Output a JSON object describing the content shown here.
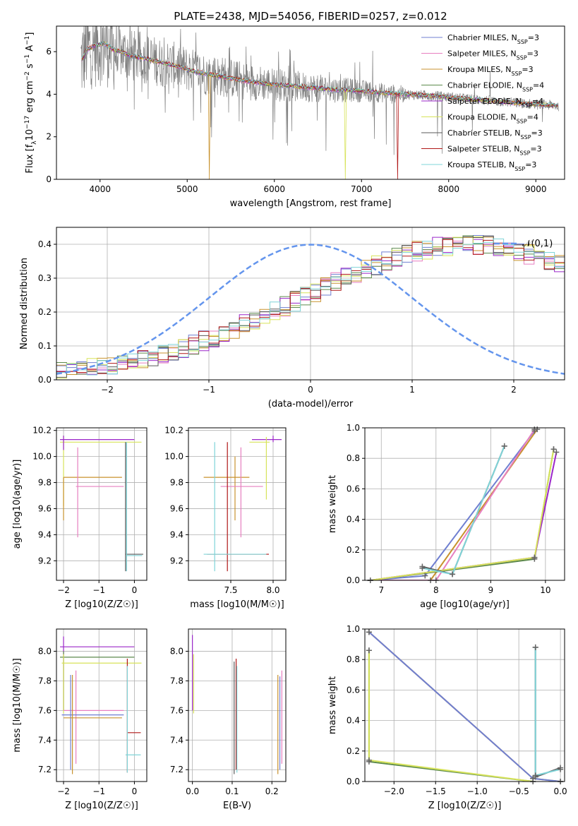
{
  "figure_title": "PLATE=2438, MJD=54056, FIBERID=0257, z=0.012",
  "series_legend": [
    {
      "name": "Chabrier MILES, N<sub>SSP</sub>=3",
      "label": "Chabrier MILES, N",
      "sub": "SSP",
      "tail": "=3",
      "color": "#6f7fd1"
    },
    {
      "name": "Salpeter MILES",
      "label": "Salpeter MILES, N",
      "sub": "SSP",
      "tail": "=3",
      "color": "#e77fc0"
    },
    {
      "name": "Kroupa MILES",
      "label": "Kroupa MILES, N",
      "sub": "SSP",
      "tail": "=3",
      "color": "#c8922e"
    },
    {
      "name": "Chabrier ELODIE",
      "label": "Chabrier ELODIE, N",
      "sub": "SSP",
      "tail": "=4",
      "color": "#5c8a4c"
    },
    {
      "name": "Salpeter ELODIE",
      "label": "Salpeter ELODIE, N",
      "sub": "SSP",
      "tail": "=4",
      "color": "#9b27c9"
    },
    {
      "name": "Kroupa ELODIE",
      "label": "Kroupa ELODIE, N",
      "sub": "SSP",
      "tail": "=4",
      "color": "#d7e35a"
    },
    {
      "name": "Chabrier STELIB",
      "label": "Chabrier STELIB, N",
      "sub": "SSP",
      "tail": "=3",
      "color": "#5a5a5a"
    },
    {
      "name": "Salpeter STELIB",
      "label": "Salpeter STELIB, N",
      "sub": "SSP",
      "tail": "=3",
      "color": "#b01818"
    },
    {
      "name": "Kroupa STELIB",
      "label": "Kroupa STELIB, N",
      "sub": "SSP",
      "tail": "=3",
      "color": "#7fd4d8"
    }
  ],
  "chart_data": [
    {
      "panel": "spectrum",
      "type": "line",
      "title": "PLATE=2438, MJD=54056, FIBERID=0257, z=0.012",
      "xlabel": "wavelength [Angstrom, rest frame]",
      "ylabel_main": "Flux [f",
      "ylabel_text": "Flux [fλ10⁻¹⁷ erg cm⁻² s⁻¹ A⁻¹]",
      "xlim": [
        3500,
        9330
      ],
      "ylim": [
        0,
        7.2
      ],
      "xticks": [
        4000,
        5000,
        6000,
        7000,
        8000,
        9000
      ],
      "yticks": [
        0,
        2,
        4,
        6
      ],
      "data_color": "#808080",
      "continuum": {
        "x": [
          3790,
          3850,
          3950,
          4050,
          4150,
          4250,
          4350,
          4500,
          4700,
          4900,
          5100,
          5300,
          5500,
          5700,
          5900,
          6100,
          6300,
          6500,
          6700,
          6900,
          7100,
          7300,
          7500,
          7700,
          7900,
          8100,
          8300,
          8500,
          8700,
          8900,
          9100,
          9260
        ],
        "y": [
          5.6,
          6.1,
          6.3,
          6.4,
          6.1,
          6.0,
          5.8,
          5.7,
          5.5,
          5.3,
          5.05,
          4.9,
          4.75,
          4.6,
          4.5,
          4.42,
          4.35,
          4.28,
          4.22,
          4.18,
          4.12,
          4.05,
          4.0,
          3.95,
          3.9,
          3.82,
          3.75,
          3.68,
          3.62,
          3.55,
          3.5,
          3.45
        ]
      }
    },
    {
      "panel": "residual_histogram",
      "type": "line",
      "xlabel": "(data-model)/error",
      "ylabel": "Normed distribution",
      "xlim": [
        -2.5,
        2.5
      ],
      "ylim": [
        0,
        0.45
      ],
      "xticks": [
        -2,
        -1,
        0,
        1,
        2
      ],
      "yticks": [
        0.0,
        0.1,
        0.2,
        0.3,
        0.4
      ],
      "legend": "𝒩(0,1)",
      "bin_edges_start": -2.5,
      "bin_width": 0.1,
      "reference": [
        0.026,
        0.029,
        0.032,
        0.036,
        0.04,
        0.044,
        0.049,
        0.055,
        0.061,
        0.068,
        0.076,
        0.085,
        0.094,
        0.104,
        0.115,
        0.126,
        0.138,
        0.15,
        0.163,
        0.176,
        0.189,
        0.203,
        0.217,
        0.231,
        0.245,
        0.259,
        0.273,
        0.287,
        0.301,
        0.314,
        0.327,
        0.339,
        0.35,
        0.361,
        0.37,
        0.379,
        0.386,
        0.392,
        0.396,
        0.399,
        0.399,
        0.399,
        0.396,
        0.392,
        0.386,
        0.379,
        0.37,
        0.361,
        0.35,
        0.339
      ]
    },
    {
      "panel": "age_vs_Z",
      "type": "scatter",
      "xlabel": "Z [log10(Z/Z☉)]",
      "ylabel": "age  [log10(age/yr)]",
      "xlim": [
        -2.2,
        0.35
      ],
      "ylim": [
        9.05,
        10.22
      ],
      "xticks": [
        -2,
        -1,
        0
      ],
      "yticks": [
        9.2,
        9.4,
        9.6,
        9.8,
        10.0,
        10.2
      ],
      "points": [
        {
          "series": "Kroupa ELODIE",
          "z": -2.0,
          "zlo": -2.1,
          "zhi": 0.2,
          "age": 10.11,
          "alo": 9.62,
          "ahi": 10.16
        },
        {
          "series": "Salpeter ELODIE",
          "z": -2.0,
          "zlo": -2.1,
          "zhi": 0.0,
          "age": 10.13,
          "alo": 10.05,
          "ahi": 10.16
        },
        {
          "series": "Kroupa MILES",
          "z": -2.0,
          "zlo": -2.0,
          "zhi": -0.35,
          "age": 9.84,
          "alo": 9.51,
          "ahi": 9.84
        },
        {
          "series": "Salpeter MILES",
          "z": -1.6,
          "zlo": -1.65,
          "zhi": -0.3,
          "age": 9.77,
          "alo": 9.38,
          "ahi": 10.07
        },
        {
          "series": "Chabrier STELIB",
          "z": -0.25,
          "zlo": -0.25,
          "zhi": 0.25,
          "age": 9.25,
          "alo": 9.12,
          "ahi": 10.11
        },
        {
          "series": "Kroupa STELIB",
          "z": -0.22,
          "zlo": -0.22,
          "zhi": 0.22,
          "age": 9.24,
          "alo": 9.12,
          "ahi": 10.11
        }
      ]
    },
    {
      "panel": "age_vs_mass",
      "type": "scatter",
      "xlabel": "mass [log10(M/M☉)]",
      "ylabel": "",
      "xlim": [
        7.0,
        8.15
      ],
      "ylim": [
        9.05,
        10.22
      ],
      "xticks": [
        7.5,
        8.0
      ],
      "yticks": [
        9.2,
        9.4,
        9.6,
        9.8,
        10.0,
        10.2
      ],
      "points": [
        {
          "series": "Salpeter ELODIE",
          "m": 8.0,
          "mlo": 7.75,
          "mhi": 8.1,
          "age": 10.13,
          "alo": 10.11,
          "ahi": 10.16
        },
        {
          "series": "Kroupa ELODIE",
          "m": 7.92,
          "mlo": 7.72,
          "mhi": 7.96,
          "age": 10.11,
          "alo": 9.67,
          "ahi": 10.15
        },
        {
          "series": "Kroupa MILES",
          "m": 7.55,
          "mlo": 7.18,
          "mhi": 7.72,
          "age": 9.84,
          "alo": 9.51,
          "ahi": 10.0
        },
        {
          "series": "Salpeter MILES",
          "m": 7.62,
          "mlo": 7.38,
          "mhi": 7.88,
          "age": 9.77,
          "alo": 9.38,
          "ahi": 10.07
        },
        {
          "series": "Salpeter STELIB",
          "m": 7.46,
          "mlo": 7.22,
          "mhi": 7.95,
          "age": 9.25,
          "alo": 9.12,
          "ahi": 10.11
        },
        {
          "series": "Kroupa STELIB",
          "m": 7.31,
          "mlo": 7.18,
          "mhi": 7.92,
          "age": 9.25,
          "alo": 9.12,
          "ahi": 10.11
        }
      ]
    },
    {
      "panel": "mass_weight_vs_age",
      "type": "line",
      "xlabel": "age  [log10(age/yr)]",
      "ylabel": "mass weight",
      "xlim": [
        6.7,
        10.35
      ],
      "ylim": [
        0,
        1
      ],
      "xticks": [
        7,
        8,
        9,
        10
      ],
      "yticks": [
        0.0,
        0.2,
        0.4,
        0.6,
        0.8,
        1.0
      ],
      "series": [
        {
          "name": "Chabrier MILES",
          "x": [
            6.8,
            7.8,
            9.8
          ],
          "y": [
            0.0,
            0.03,
            0.98
          ]
        },
        {
          "name": "Kroupa MILES",
          "x": [
            6.8,
            7.9,
            9.85
          ],
          "y": [
            0.0,
            0.0,
            0.99
          ]
        },
        {
          "name": "Salpeter MILES",
          "x": [
            6.8,
            8.0,
            9.8
          ],
          "y": [
            0.0,
            0.0,
            0.99
          ]
        },
        {
          "name": "Chabrier ELODIE",
          "x": [
            6.8,
            9.8,
            10.15
          ],
          "y": [
            0.0,
            0.14,
            0.86
          ]
        },
        {
          "name": "Salpeter ELODIE",
          "x": [
            6.8,
            9.8,
            10.2
          ],
          "y": [
            0.0,
            0.15,
            0.84
          ]
        },
        {
          "name": "Kroupa ELODIE",
          "x": [
            6.8,
            9.8,
            10.15
          ],
          "y": [
            0.0,
            0.15,
            0.86
          ]
        },
        {
          "name": "Chabrier STELIB",
          "x": [
            7.75,
            8.3,
            9.25
          ],
          "y": [
            0.09,
            0.04,
            0.88
          ]
        },
        {
          "name": "Kroupa STELIB",
          "x": [
            7.75,
            8.3,
            9.25
          ],
          "y": [
            0.08,
            0.04,
            0.88
          ]
        }
      ]
    },
    {
      "panel": "mass_vs_Z",
      "type": "scatter",
      "xlabel": "Z [log10(Z/Z☉)]",
      "ylabel": "mass [log10(M/M☉)]",
      "xlim": [
        -2.2,
        0.35
      ],
      "ylim": [
        7.12,
        8.15
      ],
      "xticks": [
        -2,
        -1,
        0
      ],
      "yticks": [
        7.2,
        7.4,
        7.6,
        7.8,
        8.0
      ],
      "points": [
        {
          "series": "Salpeter ELODIE",
          "z": -2.0,
          "zlo": -2.1,
          "zhi": 0.0,
          "m": 8.03,
          "mlo": 7.6,
          "mhi": 8.1
        },
        {
          "series": "Chabrier ELODIE",
          "z": -2.0,
          "zlo": -2.1,
          "zhi": 0.0,
          "m": 7.96,
          "mlo": 7.6,
          "mhi": 8.0
        },
        {
          "series": "Kroupa ELODIE",
          "z": -2.0,
          "zlo": -2.05,
          "zhi": 0.2,
          "m": 7.92,
          "mlo": 7.58,
          "mhi": 7.98
        },
        {
          "series": "Salpeter MILES",
          "z": -1.65,
          "zlo": -2.0,
          "zhi": -0.3,
          "m": 7.6,
          "mlo": 7.24,
          "mhi": 7.87
        },
        {
          "series": "Chabrier MILES",
          "z": -1.8,
          "zlo": -2.05,
          "zhi": -0.3,
          "m": 7.57,
          "mlo": 7.2,
          "mhi": 7.84
        },
        {
          "series": "Kroupa MILES",
          "z": -1.75,
          "zlo": -2.0,
          "zhi": -0.35,
          "m": 7.55,
          "mlo": 7.17,
          "mhi": 7.84
        },
        {
          "series": "Salpeter STELIB",
          "z": -0.2,
          "zlo": -0.2,
          "zhi": 0.18,
          "m": 7.45,
          "mlo": 7.18,
          "mhi": 7.95
        },
        {
          "series": "Kroupa STELIB",
          "z": -0.2,
          "zlo": -0.25,
          "zhi": 0.18,
          "m": 7.3,
          "mlo": 7.18,
          "mhi": 7.9
        }
      ]
    },
    {
      "panel": "mass_vs_EBV",
      "type": "scatter",
      "xlabel": "E(B-V)",
      "ylabel": "",
      "xlim": [
        -0.01,
        0.235
      ],
      "ylim": [
        7.12,
        8.15
      ],
      "xticks": [
        0.0,
        0.1,
        0.2
      ],
      "yticks": [
        7.2,
        7.4,
        7.6,
        7.8,
        8.0
      ],
      "points": [
        {
          "series": "Salpeter ELODIE",
          "e": 0.0,
          "mlo": 7.6,
          "mhi": 8.11
        },
        {
          "series": "Kroupa ELODIE",
          "e": 0.003,
          "mlo": 7.58,
          "mhi": 7.98
        },
        {
          "series": "Chabrier STELIB",
          "e": 0.105,
          "mlo": 7.17,
          "mhi": 7.93
        },
        {
          "series": "Salpeter STELIB",
          "e": 0.11,
          "mlo": 7.2,
          "mhi": 7.95
        },
        {
          "series": "Kroupa STELIB",
          "e": 0.112,
          "mlo": 7.18,
          "mhi": 7.9
        },
        {
          "series": "Kroupa MILES",
          "e": 0.215,
          "mlo": 7.17,
          "mhi": 7.84
        },
        {
          "series": "Chabrier MILES",
          "e": 0.22,
          "mlo": 7.2,
          "mhi": 7.83
        },
        {
          "series": "Salpeter MILES",
          "e": 0.225,
          "mlo": 7.24,
          "mhi": 7.87
        }
      ]
    },
    {
      "panel": "mass_weight_vs_Z",
      "type": "line",
      "xlabel": "Z [log10(Z/Z☉)]",
      "ylabel": "mass weight",
      "xlim": [
        -2.35,
        0.05
      ],
      "ylim": [
        0,
        1
      ],
      "xticks": [
        -2.0,
        -1.5,
        -1.0,
        -0.5,
        0.0
      ],
      "yticks": [
        0.0,
        0.2,
        0.4,
        0.6,
        0.8,
        1.0
      ],
      "series": [
        {
          "name": "Kroupa MILES",
          "x": [
            -2.3,
            -0.33,
            0.0
          ],
          "y": [
            0.98,
            0.02,
            0.0
          ]
        },
        {
          "name": "Chabrier MILES",
          "x": [
            -2.3,
            -0.33,
            0.0
          ],
          "y": [
            0.98,
            0.02,
            0.0
          ]
        },
        {
          "name": "Chabrier ELODIE",
          "x": [
            -2.3,
            -2.3,
            -0.33
          ],
          "y": [
            0.86,
            0.13,
            0.0
          ]
        },
        {
          "name": "Kroupa ELODIE",
          "x": [
            -2.3,
            -2.3,
            -0.33
          ],
          "y": [
            0.86,
            0.14,
            0.0
          ]
        },
        {
          "name": "Chabrier STELIB",
          "x": [
            -0.3,
            -0.3,
            0.0
          ],
          "y": [
            0.88,
            0.03,
            0.09
          ]
        },
        {
          "name": "Kroupa STELIB",
          "x": [
            -0.3,
            -0.3,
            0.0
          ],
          "y": [
            0.88,
            0.04,
            0.08
          ]
        }
      ]
    }
  ]
}
